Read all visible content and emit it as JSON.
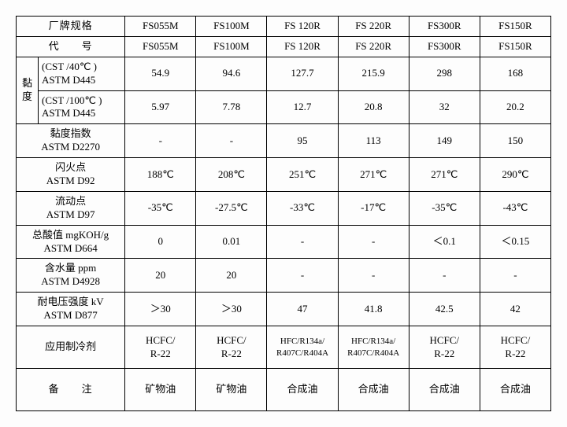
{
  "columns": [
    "FS055M",
    "FS100M",
    "FS 120R",
    "FS 220R",
    "FS300R",
    "FS150R"
  ],
  "header": {
    "brand_spec": "厂牌规格",
    "code": "代　　号"
  },
  "rows": {
    "visc_group": "黏度",
    "cst40": {
      "label": "(CST /40℃ )\nASTM D445",
      "v": [
        "54.9",
        "94.6",
        "127.7",
        "215.9",
        "298",
        "168"
      ]
    },
    "cst100": {
      "label": "(CST /100℃ )\nASTM D445",
      "v": [
        "5.97",
        "7.78",
        "12.7",
        "20.8",
        "32",
        "20.2"
      ]
    },
    "vi": {
      "label": "黏度指数\nASTM D2270",
      "v": [
        "-",
        "-",
        "95",
        "113",
        "149",
        "150"
      ]
    },
    "flash": {
      "label": "闪火点\nASTM D92",
      "v": [
        "188℃",
        "208℃",
        "251℃",
        "271℃",
        "271℃",
        "290℃"
      ]
    },
    "pour": {
      "label": "流动点\nASTM D97",
      "v": [
        "-35℃",
        "-27.5℃",
        "-33℃",
        "-17℃",
        "-35℃",
        "-43℃"
      ]
    },
    "tan": {
      "label": "总酸值 mgKOH/g\nASTM D664",
      "v": [
        "0",
        "0.01",
        "-",
        "-",
        "＜0.1",
        "＜0.15"
      ]
    },
    "water": {
      "label": "含水量 ppm\nASTM D4928",
      "v": [
        "20",
        "20",
        "-",
        "-",
        "-",
        "-"
      ]
    },
    "diel": {
      "label": "耐电压强度 kV\nASTM D877",
      "v": [
        "＞30",
        "＞30",
        "47",
        "41.8",
        "42.5",
        "42"
      ]
    },
    "refrig": {
      "label": "应用制冷剂",
      "v": [
        "HCFC/\nR-22",
        "HCFC/\nR-22",
        "HFC/R134a/\nR407C/R404A",
        "HFC/R134a/\nR407C/R404A",
        "HCFC/\nR-22",
        "HCFC/\nR-22"
      ]
    },
    "remark": {
      "label": "备　　注",
      "v": [
        "矿物油",
        "矿物油",
        "合成油",
        "合成油",
        "合成油",
        "合成油"
      ]
    }
  },
  "style": {
    "border_color": "#000000",
    "font_family": "SimSun",
    "font_size_pt": 10,
    "small_font_size_pt": 8,
    "background": "#fdfdfd"
  }
}
